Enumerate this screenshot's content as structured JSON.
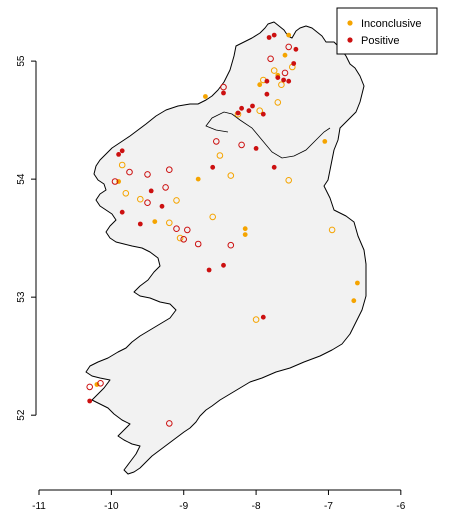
{
  "chart_data": {
    "type": "scatter",
    "xlim": [
      -11,
      -5.5
    ],
    "ylim": [
      51.4,
      55.45
    ],
    "x_ticks": [
      -11,
      -10,
      -9,
      -8,
      -7,
      -6
    ],
    "y_ticks": [
      52,
      53,
      54,
      55
    ],
    "grid": false,
    "legend_position": "top-right",
    "colors": {
      "inconclusive": "#f5a400",
      "positive": "#cc1010",
      "land": "#f2f2f2",
      "outline": "#000000"
    },
    "legend": [
      {
        "label": "Inconclusive",
        "color": "#f5a400"
      },
      {
        "label": "Positive",
        "color": "#cc1010"
      }
    ],
    "series": [
      {
        "name": "Inconclusive",
        "points": [
          {
            "lon": -7.55,
            "lat": 55.22,
            "filled": true
          },
          {
            "lon": -7.6,
            "lat": 55.05,
            "filled": true
          },
          {
            "lon": -7.5,
            "lat": 54.95,
            "filled": false
          },
          {
            "lon": -7.7,
            "lat": 54.88,
            "filled": true
          },
          {
            "lon": -7.65,
            "lat": 54.8,
            "filled": false
          },
          {
            "lon": -7.9,
            "lat": 54.84,
            "filled": false
          },
          {
            "lon": -7.95,
            "lat": 54.8,
            "filled": true
          },
          {
            "lon": -7.75,
            "lat": 54.92,
            "filled": false
          },
          {
            "lon": -8.7,
            "lat": 54.7,
            "filled": true
          },
          {
            "lon": -7.7,
            "lat": 54.65,
            "filled": false
          },
          {
            "lon": -8.25,
            "lat": 54.55,
            "filled": false
          },
          {
            "lon": -7.95,
            "lat": 54.58,
            "filled": false
          },
          {
            "lon": -8.5,
            "lat": 54.2,
            "filled": false
          },
          {
            "lon": -8.35,
            "lat": 54.03,
            "filled": false
          },
          {
            "lon": -8.8,
            "lat": 54.0,
            "filled": true
          },
          {
            "lon": -7.55,
            "lat": 53.99,
            "filled": false
          },
          {
            "lon": -7.05,
            "lat": 54.32,
            "filled": true
          },
          {
            "lon": -9.85,
            "lat": 54.12,
            "filled": false
          },
          {
            "lon": -9.9,
            "lat": 53.98,
            "filled": true
          },
          {
            "lon": -9.8,
            "lat": 53.88,
            "filled": false
          },
          {
            "lon": -9.6,
            "lat": 53.83,
            "filled": false
          },
          {
            "lon": -9.1,
            "lat": 53.82,
            "filled": false
          },
          {
            "lon": -9.4,
            "lat": 53.64,
            "filled": true
          },
          {
            "lon": -9.2,
            "lat": 53.63,
            "filled": false
          },
          {
            "lon": -8.6,
            "lat": 53.68,
            "filled": false
          },
          {
            "lon": -9.05,
            "lat": 53.5,
            "filled": false
          },
          {
            "lon": -8.15,
            "lat": 53.58,
            "filled": true
          },
          {
            "lon": -8.15,
            "lat": 53.53,
            "filled": true
          },
          {
            "lon": -6.95,
            "lat": 53.57,
            "filled": false
          },
          {
            "lon": -6.6,
            "lat": 53.12,
            "filled": true
          },
          {
            "lon": -6.65,
            "lat": 52.97,
            "filled": true
          },
          {
            "lon": -8.0,
            "lat": 52.81,
            "filled": false
          },
          {
            "lon": -10.2,
            "lat": 52.26,
            "filled": true
          }
        ]
      },
      {
        "name": "Positive",
        "points": [
          {
            "lon": -7.75,
            "lat": 55.22,
            "filled": true
          },
          {
            "lon": -7.82,
            "lat": 55.2,
            "filled": true
          },
          {
            "lon": -7.55,
            "lat": 55.12,
            "filled": false
          },
          {
            "lon": -7.45,
            "lat": 55.1,
            "filled": true
          },
          {
            "lon": -7.8,
            "lat": 55.02,
            "filled": false
          },
          {
            "lon": -7.48,
            "lat": 54.98,
            "filled": true
          },
          {
            "lon": -7.6,
            "lat": 54.9,
            "filled": false
          },
          {
            "lon": -7.7,
            "lat": 54.86,
            "filled": true
          },
          {
            "lon": -7.62,
            "lat": 54.84,
            "filled": true
          },
          {
            "lon": -7.55,
            "lat": 54.83,
            "filled": true
          },
          {
            "lon": -7.85,
            "lat": 54.83,
            "filled": true
          },
          {
            "lon": -7.85,
            "lat": 54.72,
            "filled": true
          },
          {
            "lon": -8.45,
            "lat": 54.78,
            "filled": false
          },
          {
            "lon": -8.45,
            "lat": 54.73,
            "filled": true
          },
          {
            "lon": -8.05,
            "lat": 54.62,
            "filled": true
          },
          {
            "lon": -8.2,
            "lat": 54.6,
            "filled": true
          },
          {
            "lon": -8.1,
            "lat": 54.58,
            "filled": true
          },
          {
            "lon": -8.25,
            "lat": 54.56,
            "filled": true
          },
          {
            "lon": -7.9,
            "lat": 54.55,
            "filled": true
          },
          {
            "lon": -8.55,
            "lat": 54.32,
            "filled": false
          },
          {
            "lon": -8.2,
            "lat": 54.29,
            "filled": false
          },
          {
            "lon": -8.0,
            "lat": 54.26,
            "filled": true
          },
          {
            "lon": -9.85,
            "lat": 54.24,
            "filled": true
          },
          {
            "lon": -9.9,
            "lat": 54.21,
            "filled": true
          },
          {
            "lon": -8.6,
            "lat": 54.1,
            "filled": true
          },
          {
            "lon": -7.75,
            "lat": 54.1,
            "filled": true
          },
          {
            "lon": -9.75,
            "lat": 54.06,
            "filled": false
          },
          {
            "lon": -9.5,
            "lat": 54.04,
            "filled": false
          },
          {
            "lon": -9.2,
            "lat": 54.08,
            "filled": false
          },
          {
            "lon": -9.25,
            "lat": 53.93,
            "filled": false
          },
          {
            "lon": -9.45,
            "lat": 53.9,
            "filled": true
          },
          {
            "lon": -9.95,
            "lat": 53.98,
            "filled": false
          },
          {
            "lon": -9.3,
            "lat": 53.77,
            "filled": true
          },
          {
            "lon": -9.85,
            "lat": 53.72,
            "filled": true
          },
          {
            "lon": -9.5,
            "lat": 53.8,
            "filled": false
          },
          {
            "lon": -9.6,
            "lat": 53.62,
            "filled": true
          },
          {
            "lon": -9.1,
            "lat": 53.58,
            "filled": false
          },
          {
            "lon": -8.95,
            "lat": 53.57,
            "filled": false
          },
          {
            "lon": -9.0,
            "lat": 53.49,
            "filled": false
          },
          {
            "lon": -8.8,
            "lat": 53.45,
            "filled": false
          },
          {
            "lon": -8.35,
            "lat": 53.44,
            "filled": false
          },
          {
            "lon": -8.65,
            "lat": 53.23,
            "filled": true
          },
          {
            "lon": -8.45,
            "lat": 53.27,
            "filled": true
          },
          {
            "lon": -7.9,
            "lat": 52.83,
            "filled": true
          },
          {
            "lon": -10.3,
            "lat": 52.24,
            "filled": false
          },
          {
            "lon": -10.15,
            "lat": 52.27,
            "filled": false
          },
          {
            "lon": -10.3,
            "lat": 52.12,
            "filled": true
          },
          {
            "lon": -9.2,
            "lat": 51.93,
            "filled": false
          }
        ]
      }
    ]
  }
}
